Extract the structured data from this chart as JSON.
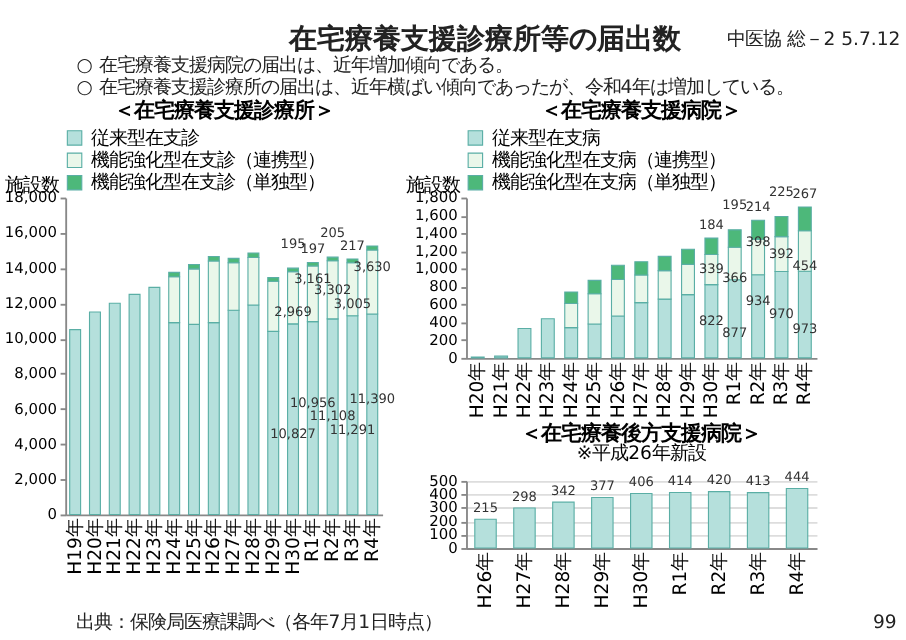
{
  "chart_data": [
    {
      "type": "bar",
      "title": "＜在宅療養支援診療所＞",
      "ylabel": "施設数",
      "stacked": true,
      "legend": "top",
      "grid": false,
      "categories": [
        "H19年",
        "H20年",
        "H21年",
        "H22年",
        "H23年",
        "H24年",
        "H25年",
        "H26年",
        "H27年",
        "H28年",
        "H29年",
        "H30年",
        "R1年",
        "R2年",
        "R3年",
        "R4年"
      ],
      "ylim": [
        0,
        18000
      ],
      "yticks": [
        0,
        {
          "value": 2000,
          "label": "2,000"
        },
        {
          "value": 4000,
          "label": "4,000"
        },
        {
          "value": 6000,
          "label": "6,000"
        },
        {
          "value": 8000,
          "label": "8,000"
        },
        {
          "value": 10000,
          "label": "10,000"
        },
        {
          "value": 12000,
          "label": "12,000"
        },
        {
          "value": 14000,
          "label": "14,000"
        },
        {
          "value": 16000,
          "label": "16,000"
        },
        {
          "value": 18000,
          "label": "18,000"
        }
      ],
      "series": [
        {
          "name": "従来型在支診",
          "color": "#b5e0dc",
          "values": [
            10500,
            11500,
            12000,
            12500,
            12900,
            10900,
            10800,
            10900,
            11600,
            11900,
            10400,
            10827,
            10956,
            11108,
            11291,
            11390
          ],
          "value_labels": [
            null,
            null,
            null,
            null,
            null,
            null,
            null,
            null,
            null,
            null,
            null,
            "10,827",
            "10,956",
            "11,108",
            "11,291",
            "11,390"
          ]
        },
        {
          "name": "機能強化型在支診（連携型）",
          "color": "#eaf7ea",
          "values": [
            null,
            null,
            null,
            null,
            null,
            2600,
            3150,
            3500,
            2700,
            2700,
            2850,
            2969,
            3161,
            3302,
            3005,
            3630
          ],
          "value_labels": [
            null,
            null,
            null,
            null,
            null,
            null,
            null,
            null,
            null,
            null,
            null,
            "2,969",
            "3,161",
            "3,302",
            "3,005",
            "3,630"
          ]
        },
        {
          "name": "機能強化型在支診（単独型）",
          "color": "#4db87a",
          "values": [
            null,
            null,
            null,
            null,
            null,
            250,
            250,
            250,
            250,
            250,
            200,
            195,
            197,
            205,
            217,
            230
          ],
          "value_labels": [
            null,
            null,
            null,
            null,
            null,
            null,
            null,
            null,
            null,
            null,
            null,
            "195",
            "197",
            "205",
            "217",
            null
          ]
        }
      ],
      "annotations": [
        "在宅療養支援診療所等の届出数",
        "中医協 総－2 5.7.12",
        "○ 在宅療養支援病院の届出は、近年増加傾向である。",
        "○ 在宅療養支援診療所の届出は、近年横ばい傾向であったが、令和4年は増加している。",
        "出典：保険局医療課調べ（各年7月1日時点）",
        "99"
      ]
    },
    {
      "type": "bar",
      "title": "＜在宅療養支援病院＞",
      "ylabel": "施設数",
      "stacked": true,
      "legend": "top",
      "grid": false,
      "categories": [
        "H20年",
        "H21年",
        "H22年",
        "H23年",
        "H24年",
        "H25年",
        "H26年",
        "H27年",
        "H28年",
        "H29年",
        "H30年",
        "R1年",
        "R2年",
        "R3年",
        "R4年"
      ],
      "ylim": [
        0,
        1800
      ],
      "yticks": [
        0,
        200,
        400,
        600,
        800,
        {
          "value": 1000,
          "label": "1,000"
        },
        {
          "value": 1200,
          "label": "1,200"
        },
        {
          "value": 1400,
          "label": "1,400"
        },
        {
          "value": 1600,
          "label": "1,600"
        },
        {
          "value": 1800,
          "label": "1,800"
        }
      ],
      "series": [
        {
          "name": "従来型在支病",
          "color": "#b5e0dc",
          "values": [
            10,
            20,
            330,
            440,
            340,
            380,
            470,
            620,
            660,
            710,
            822,
            877,
            934,
            970,
            973
          ],
          "value_labels": [
            null,
            null,
            null,
            null,
            null,
            null,
            null,
            null,
            null,
            null,
            "822",
            "877",
            "934",
            "970",
            "973"
          ]
        },
        {
          "name": "機能強化型在支病（連携型）",
          "color": "#eaf7ea",
          "values": [
            null,
            null,
            null,
            null,
            270,
            340,
            410,
            310,
            320,
            340,
            339,
            366,
            398,
            392,
            454
          ],
          "value_labels": [
            null,
            null,
            null,
            null,
            null,
            null,
            null,
            null,
            null,
            null,
            "339",
            "366",
            "398",
            "392",
            "454"
          ]
        },
        {
          "name": "機能強化型在支病（単独型）",
          "color": "#4db87a",
          "values": [
            null,
            null,
            null,
            null,
            130,
            150,
            160,
            150,
            160,
            170,
            184,
            195,
            214,
            225,
            267
          ],
          "value_labels": [
            null,
            null,
            null,
            null,
            null,
            null,
            null,
            null,
            null,
            null,
            "184",
            "195",
            "214",
            "225",
            "267"
          ]
        }
      ]
    },
    {
      "type": "bar",
      "title": "＜在宅療養後方支援病院＞",
      "subtitle": "※平成26年新設",
      "grid": "y",
      "data_labels": true,
      "categories": [
        "H26年",
        "H27年",
        "H28年",
        "H29年",
        "H30年",
        "R1年",
        "R2年",
        "R3年",
        "R4年"
      ],
      "ylim": [
        0,
        500
      ],
      "yticks": [
        0,
        100,
        200,
        300,
        400,
        500
      ],
      "series": [
        {
          "color": "#b5e0dc",
          "values": [
            215,
            298,
            342,
            377,
            406,
            414,
            420,
            413,
            444
          ]
        }
      ]
    }
  ]
}
